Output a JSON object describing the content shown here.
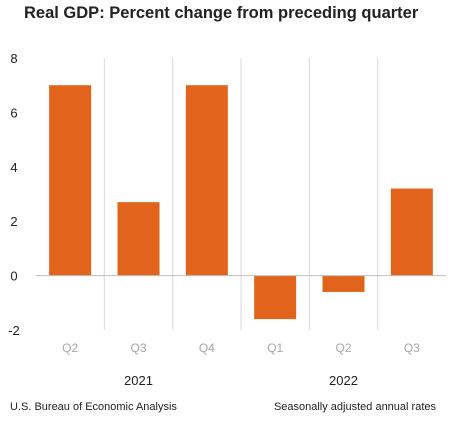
{
  "chart_data": {
    "type": "bar",
    "title": "Real GDP:  Percent change from preceding quarter",
    "categories": [
      "Q2",
      "Q3",
      "Q4",
      "Q1",
      "Q2",
      "Q3"
    ],
    "groups": [
      {
        "label": "2021",
        "categories": [
          "Q2",
          "Q3",
          "Q4"
        ]
      },
      {
        "label": "2022",
        "categories": [
          "Q1",
          "Q2",
          "Q3"
        ]
      }
    ],
    "values": [
      7.0,
      2.7,
      7.0,
      -1.6,
      -0.6,
      3.2
    ],
    "yticks": [
      "8",
      "6",
      "4",
      "2",
      "0",
      "-2"
    ],
    "ylim": [
      -2,
      8
    ],
    "grid": "vertical separators between categories",
    "bar_color": "#E2631B",
    "source": "U.S. Bureau of Economic Analysis",
    "note": "Seasonally adjusted annual rates"
  }
}
